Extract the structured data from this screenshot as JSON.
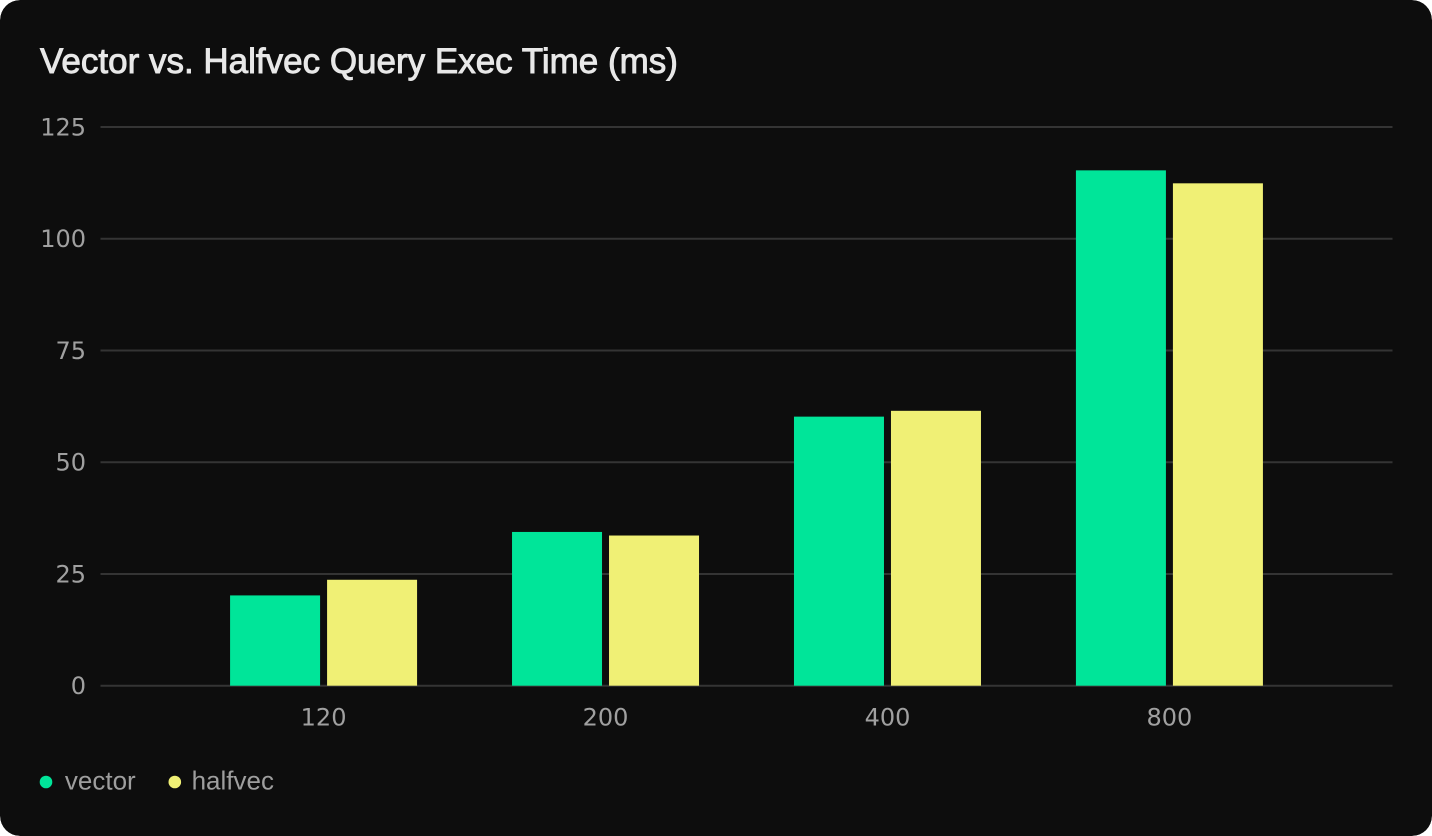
{
  "page": {
    "background": "#ffffff"
  },
  "card": {
    "background": "#0d0d0d",
    "corner_radius": 20
  },
  "chart_data": {
    "type": "bar",
    "title": "Vector vs. Halfvec Query Exec Time (ms)",
    "categories": [
      "120",
      "200",
      "400",
      "800"
    ],
    "series": [
      {
        "name": "vector",
        "color": "#00e599",
        "values": [
          20.2,
          34.4,
          60.2,
          115.3
        ]
      },
      {
        "name": "halfvec",
        "color": "#f0f075",
        "values": [
          23.7,
          33.6,
          61.5,
          112.4
        ]
      }
    ],
    "xlabel": "",
    "ylabel": "",
    "ylim": [
      0,
      125
    ],
    "yticks": [
      0,
      25,
      50,
      75,
      100,
      125
    ],
    "grid": true,
    "legend_position": "bottom-left",
    "colors": {
      "title": "#e8e8e8",
      "tick_label": "#a0a0a0",
      "legend_label": "#9e9e9e",
      "gridline": "#343434"
    }
  }
}
